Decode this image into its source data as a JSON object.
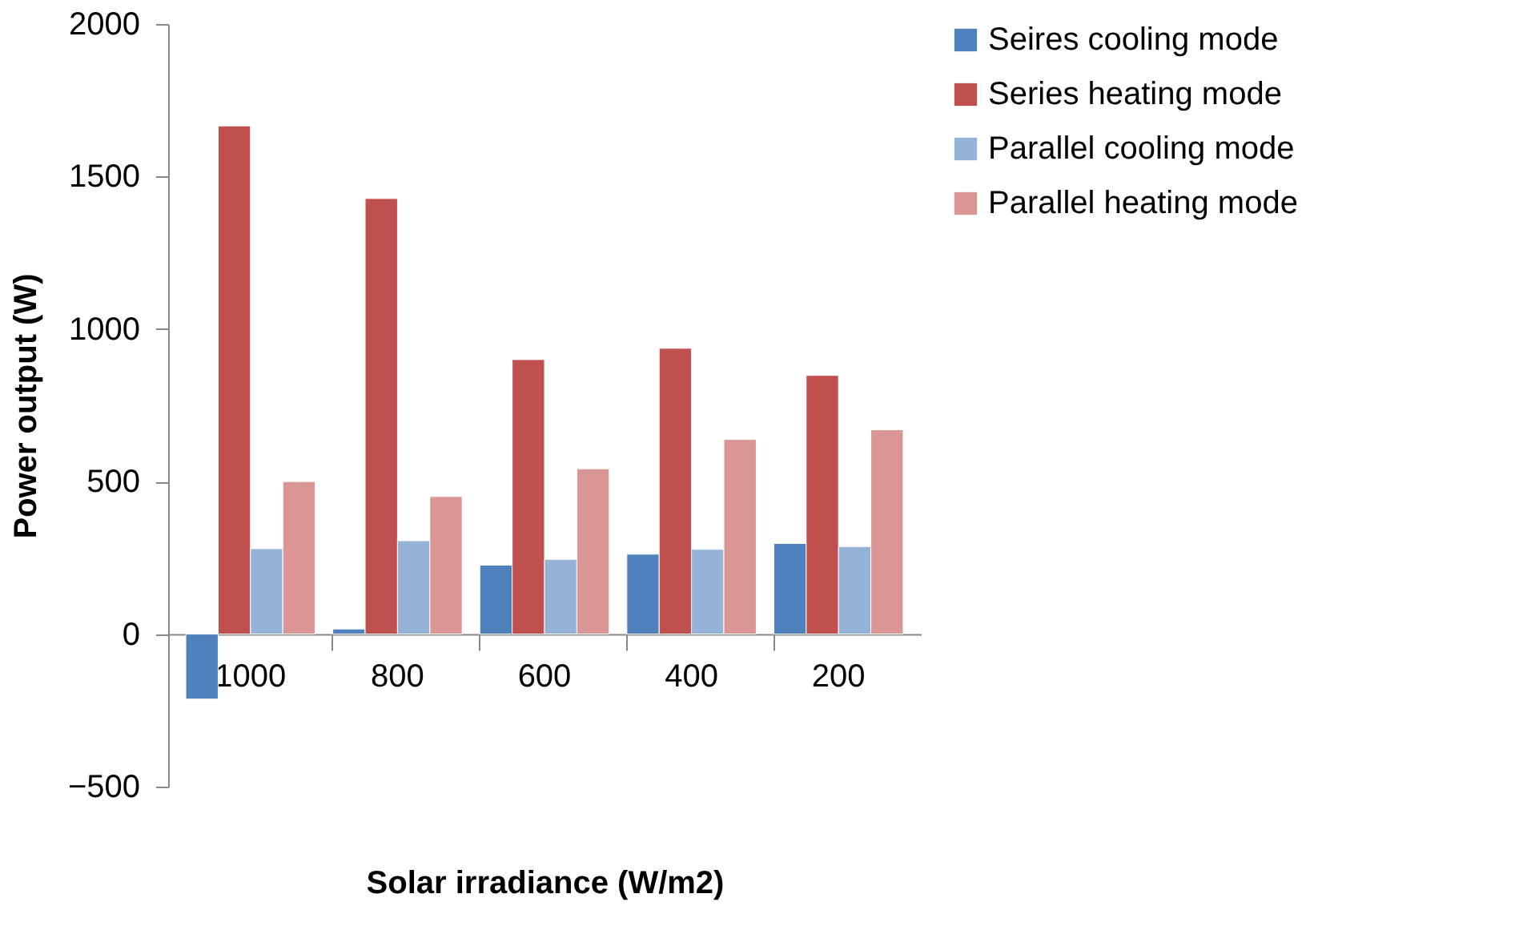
{
  "chart_data": {
    "type": "bar",
    "xlabel": "Solar irradiance (W/m2)",
    "ylabel": "Power output (W)",
    "categories": [
      "1000",
      "800",
      "600",
      "400",
      "200"
    ],
    "series": [
      {
        "name": "Seires cooling mode",
        "color": "#4f81bd",
        "values": [
          -213,
          17,
          226,
          262,
          297
        ]
      },
      {
        "name": "Series heating mode",
        "color": "#c0504d",
        "values": [
          1666,
          1428,
          900,
          937,
          848
        ]
      },
      {
        "name": "Parallel cooling mode",
        "color": "#95b3d7",
        "values": [
          280,
          306,
          245,
          278,
          287
        ]
      },
      {
        "name": "Parallel heating mode",
        "color": "#d99694",
        "values": [
          500,
          451,
          542,
          638,
          670
        ]
      }
    ],
    "ylim": [
      -500,
      2000
    ],
    "yticks": [
      -500,
      0,
      500,
      1000,
      1500,
      2000
    ],
    "grid": false,
    "legend": "right"
  }
}
